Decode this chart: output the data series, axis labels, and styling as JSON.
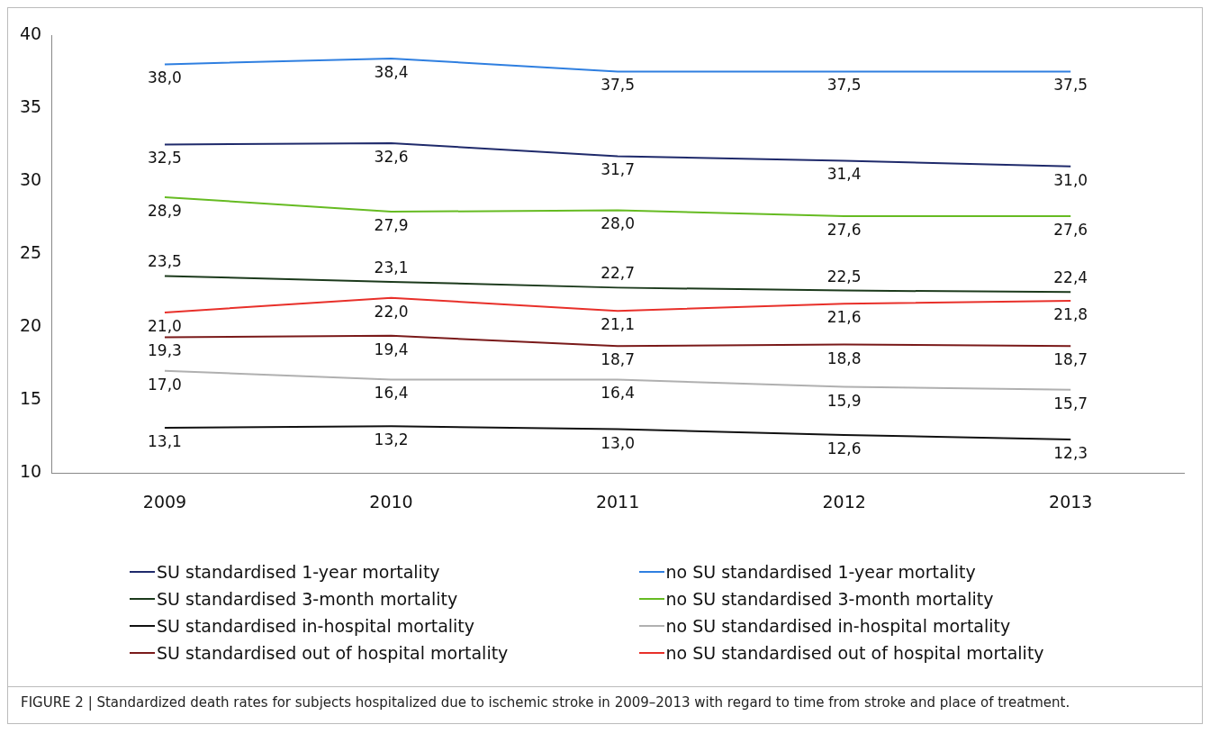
{
  "chart_data": {
    "type": "line",
    "categories": [
      "2009",
      "2010",
      "2011",
      "2012",
      "2013"
    ],
    "ylim": [
      10,
      40
    ],
    "yticks": [
      10,
      15,
      20,
      25,
      30,
      35,
      40
    ],
    "grid": false,
    "legend": "bottom",
    "marker": "none",
    "line_style": "solid",
    "series": [
      {
        "name": "SU standardised 1-year mortality",
        "color": "#1f2a6b",
        "values": [
          32.5,
          32.6,
          31.7,
          31.4,
          31.0
        ],
        "value_labels": [
          "32,5",
          "32,6",
          "31,7",
          "31,4",
          "31,0"
        ]
      },
      {
        "name": "no SU standardised 1-year mortality",
        "color": "#2f7fe0",
        "values": [
          38.0,
          38.4,
          37.5,
          37.5,
          37.5
        ],
        "value_labels": [
          "38,0",
          "38,4",
          "37,5",
          "37,5",
          "37,5"
        ]
      },
      {
        "name": "SU standardised 3-month mortality",
        "color": "#1c3a1c",
        "values": [
          23.5,
          23.1,
          22.7,
          22.5,
          22.4
        ],
        "value_labels": [
          "23,5",
          "23,1",
          "22,7",
          "22,5",
          "22,4"
        ]
      },
      {
        "name": "no SU standardised 3-month mortality",
        "color": "#66bb22",
        "values": [
          28.9,
          27.9,
          28.0,
          27.6,
          27.6
        ],
        "value_labels": [
          "28,9",
          "27,9",
          "28,0",
          "27,6",
          "27,6"
        ]
      },
      {
        "name": "SU standardised in-hospital mortality",
        "color": "#111111",
        "values": [
          13.1,
          13.2,
          13.0,
          12.6,
          12.3
        ],
        "value_labels": [
          "13,1",
          "13,2",
          "13,0",
          "12,6",
          "12,3"
        ]
      },
      {
        "name": "no SU standardised in-hospital mortality",
        "color": "#b0b0b0",
        "values": [
          17.0,
          16.4,
          16.4,
          15.9,
          15.7
        ],
        "value_labels": [
          "17,0",
          "16,4",
          "16,4",
          "15,9",
          "15,7"
        ]
      },
      {
        "name": "SU standardised out of hospital mortality",
        "color": "#7a1a1a",
        "values": [
          19.3,
          19.4,
          18.7,
          18.8,
          18.7
        ],
        "value_labels": [
          "19,3",
          "19,4",
          "18,7",
          "18,8",
          "18,7"
        ]
      },
      {
        "name": "no SU standardised out of hospital mortality",
        "color": "#e8302a",
        "values": [
          21.0,
          22.0,
          21.1,
          21.6,
          21.8
        ],
        "value_labels": [
          "21,0",
          "22,0",
          "21,1",
          "21,6",
          "21,8"
        ]
      }
    ],
    "annotations": [
      "FIGURE 2 | Standardized death rates for subjects hospitalized due to ischemic stroke in 2009–2013 with regard to time from stroke and place of treatment."
    ]
  }
}
